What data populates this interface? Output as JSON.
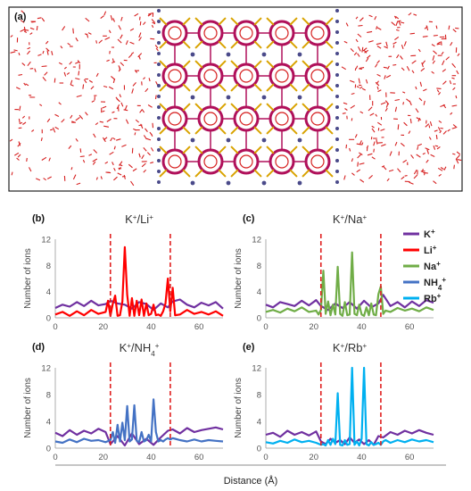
{
  "panel_a": {
    "label": "(a)",
    "atom_colors": {
      "water": "#d62020",
      "framework": "#b0105a",
      "bridge": "#d9a300",
      "cation": "#4a4a8a"
    }
  },
  "colors": {
    "K": "#7030a0",
    "Li": "#ff0000",
    "Na": "#70ad47",
    "NH4": "#4472c4",
    "Rb": "#00b0f0",
    "boundary": "#e02020"
  },
  "legend": [
    {
      "key": "K",
      "label": "K",
      "sup": "+",
      "sub": ""
    },
    {
      "key": "Li",
      "label": "Li",
      "sup": "+",
      "sub": ""
    },
    {
      "key": "Na",
      "label": "Na",
      "sup": "+",
      "sub": ""
    },
    {
      "key": "NH4",
      "label": "NH",
      "sub": "4",
      "sup": "+"
    },
    {
      "key": "Rb",
      "label": "Rb",
      "sup": "+",
      "sub": ""
    }
  ],
  "x_axis_title": "Distance (Å)",
  "chart_data": [
    {
      "id": "b",
      "label": "(b)",
      "type": "line",
      "title": {
        "a": "K",
        "a_sub": "",
        "b": "Li",
        "b_sub": ""
      },
      "ylabel": "Number of ions",
      "xlim": [
        0,
        70
      ],
      "ylim": [
        0,
        12
      ],
      "xticks": [
        0,
        20,
        40,
        60
      ],
      "yticks": [
        0,
        4,
        8,
        12
      ],
      "boundaries": [
        23,
        48
      ],
      "series": [
        {
          "key": "K",
          "x": [
            0,
            3,
            6,
            9,
            12,
            15,
            18,
            21,
            23,
            26,
            29,
            32,
            35,
            38,
            41,
            44,
            47,
            49,
            52,
            55,
            58,
            61,
            64,
            67,
            70
          ],
          "y": [
            1.5,
            2.0,
            1.7,
            2.4,
            1.8,
            2.6,
            1.9,
            2.1,
            2.6,
            2.2,
            2.0,
            1.4,
            2.4,
            2.1,
            1.2,
            2.2,
            1.6,
            2.5,
            2.8,
            2.0,
            1.6,
            2.3,
            1.9,
            2.4,
            1.4
          ]
        },
        {
          "key": "Li",
          "x": [
            0,
            3,
            6,
            9,
            12,
            15,
            18,
            21,
            22,
            23,
            24,
            25,
            26,
            27,
            28,
            29,
            30,
            31,
            32,
            33,
            34,
            35,
            36,
            37,
            38,
            39,
            40,
            41,
            42,
            43,
            44,
            45,
            46,
            47,
            48,
            49,
            50,
            52,
            55,
            58,
            61,
            64,
            67,
            70
          ],
          "y": [
            0.5,
            0.9,
            0.3,
            1.0,
            0.4,
            1.2,
            0.6,
            0.9,
            2.6,
            0.3,
            2.2,
            3.4,
            0.3,
            0.4,
            2.5,
            10.8,
            3.5,
            0.3,
            3.0,
            0.3,
            2.6,
            0.4,
            2.8,
            0.3,
            2.2,
            0.4,
            0.6,
            2.0,
            0.4,
            0.5,
            0.3,
            1.0,
            2.2,
            6.0,
            1.0,
            4.6,
            0.4,
            0.5,
            1.2,
            0.6,
            0.9,
            0.5,
            1.0,
            0.3
          ]
        }
      ]
    },
    {
      "id": "c",
      "label": "(c)",
      "type": "line",
      "title": {
        "a": "K",
        "a_sub": "",
        "b": "Na",
        "b_sub": ""
      },
      "ylabel": "Number of ions",
      "xlim": [
        0,
        70
      ],
      "ylim": [
        0,
        12
      ],
      "xticks": [
        0,
        20,
        40,
        60
      ],
      "yticks": [
        0,
        4,
        8,
        12
      ],
      "boundaries": [
        23,
        48
      ],
      "series": [
        {
          "key": "K",
          "x": [
            0,
            3,
            6,
            9,
            12,
            15,
            18,
            21,
            23,
            26,
            29,
            32,
            35,
            38,
            41,
            44,
            47,
            49,
            52,
            55,
            58,
            61,
            64,
            67,
            70
          ],
          "y": [
            2.0,
            1.6,
            2.4,
            2.1,
            1.8,
            2.6,
            1.9,
            2.7,
            1.8,
            1.2,
            2.2,
            1.5,
            2.4,
            1.4,
            2.6,
            1.6,
            2.2,
            3.5,
            1.8,
            2.4,
            1.6,
            2.5,
            1.8,
            2.7,
            2.3
          ]
        },
        {
          "key": "Na",
          "x": [
            0,
            3,
            6,
            9,
            12,
            15,
            18,
            21,
            22,
            23,
            24,
            25,
            26,
            27,
            28,
            29,
            30,
            31,
            32,
            33,
            34,
            35,
            36,
            37,
            38,
            39,
            40,
            41,
            42,
            43,
            44,
            45,
            46,
            47,
            48,
            49,
            50,
            52,
            55,
            58,
            61,
            64,
            67,
            70
          ],
          "y": [
            0.9,
            1.2,
            0.8,
            1.4,
            1.0,
            1.6,
            0.9,
            1.1,
            0.5,
            1.2,
            7.2,
            0.6,
            2.5,
            0.4,
            2.0,
            0.5,
            7.8,
            0.6,
            0.3,
            2.4,
            0.4,
            0.5,
            10.0,
            0.6,
            0.4,
            2.0,
            0.5,
            0.3,
            1.6,
            0.4,
            2.2,
            0.5,
            0.4,
            3.6,
            4.8,
            0.6,
            1.1,
            0.9,
            1.5,
            1.1,
            1.4,
            1.0,
            1.6,
            1.2
          ]
        }
      ]
    },
    {
      "id": "d",
      "label": "(d)",
      "type": "line",
      "title": {
        "a": "K",
        "a_sub": "",
        "b": "NH",
        "b_sub": "4"
      },
      "ylabel": "Number of ions",
      "xlim": [
        0,
        70
      ],
      "ylim": [
        0,
        12
      ],
      "xticks": [
        0,
        20,
        40,
        60
      ],
      "yticks": [
        0,
        4,
        8,
        12
      ],
      "boundaries": [
        23,
        48
      ],
      "series": [
        {
          "key": "K",
          "x": [
            0,
            3,
            6,
            9,
            12,
            15,
            18,
            21,
            23,
            26,
            29,
            32,
            35,
            38,
            41,
            44,
            47,
            49,
            52,
            55,
            58,
            61,
            64,
            67,
            70
          ],
          "y": [
            2.3,
            1.8,
            2.7,
            2.0,
            2.6,
            2.2,
            2.9,
            2.4,
            0.6,
            1.8,
            0.4,
            2.2,
            0.6,
            1.4,
            0.5,
            1.6,
            2.6,
            2.8,
            2.2,
            3.0,
            2.4,
            2.7,
            2.9,
            3.1,
            2.8
          ]
        },
        {
          "key": "NH4",
          "x": [
            0,
            3,
            6,
            9,
            12,
            15,
            18,
            21,
            23,
            24,
            25,
            26,
            27,
            28,
            29,
            30,
            31,
            32,
            33,
            34,
            35,
            36,
            37,
            38,
            39,
            40,
            41,
            42,
            43,
            44,
            45,
            46,
            47,
            48,
            49,
            50,
            52,
            55,
            58,
            61,
            64,
            67,
            70
          ],
          "y": [
            1.0,
            0.8,
            1.3,
            0.9,
            1.4,
            1.1,
            1.2,
            0.9,
            1.2,
            2.4,
            0.8,
            3.5,
            1.0,
            3.8,
            1.2,
            6.3,
            1.0,
            1.3,
            6.4,
            1.1,
            0.9,
            2.4,
            1.0,
            1.2,
            2.0,
            1.0,
            7.3,
            2.4,
            1.0,
            1.2,
            1.0,
            1.3,
            1.5,
            1.3,
            1.5,
            1.4,
            1.2,
            1.0,
            1.3,
            1.0,
            1.2,
            1.1,
            1.0
          ]
        }
      ]
    },
    {
      "id": "e",
      "label": "(e)",
      "type": "line",
      "title": {
        "a": "K",
        "a_sub": "",
        "b": "Rb",
        "b_sub": ""
      },
      "ylabel": "Number of ions",
      "xlim": [
        0,
        70
      ],
      "ylim": [
        0,
        12
      ],
      "xticks": [
        0,
        20,
        40,
        60
      ],
      "yticks": [
        0,
        4,
        8,
        12
      ],
      "boundaries": [
        23,
        48
      ],
      "series": [
        {
          "key": "K",
          "x": [
            0,
            3,
            6,
            9,
            12,
            15,
            18,
            21,
            23,
            25,
            27,
            29,
            31,
            33,
            35,
            37,
            39,
            41,
            43,
            45,
            47,
            49,
            52,
            55,
            58,
            61,
            64,
            67,
            70
          ],
          "y": [
            2.0,
            2.3,
            1.7,
            2.6,
            2.0,
            2.4,
            1.9,
            2.5,
            1.0,
            0.6,
            1.4,
            0.8,
            1.2,
            0.6,
            1.6,
            0.8,
            1.3,
            0.6,
            1.2,
            0.5,
            1.8,
            1.6,
            2.4,
            2.0,
            2.6,
            2.2,
            2.7,
            2.3,
            2.0
          ]
        },
        {
          "key": "Rb",
          "x": [
            0,
            3,
            6,
            9,
            12,
            15,
            18,
            21,
            23,
            24,
            25,
            26,
            27,
            28,
            29,
            30,
            31,
            32,
            33,
            34,
            35,
            36,
            37,
            38,
            39,
            40,
            41,
            42,
            43,
            44,
            45,
            46,
            47,
            48,
            49,
            50,
            52,
            55,
            58,
            61,
            64,
            67,
            70
          ],
          "y": [
            0.9,
            0.7,
            1.1,
            0.8,
            1.3,
            0.9,
            1.1,
            0.8,
            0.5,
            0.6,
            0.4,
            1.2,
            0.5,
            1.4,
            0.6,
            8.2,
            0.5,
            0.4,
            1.2,
            0.5,
            0.6,
            12.0,
            0.5,
            1.0,
            0.4,
            1.4,
            12.0,
            0.6,
            0.4,
            0.9,
            0.5,
            0.6,
            0.8,
            0.5,
            1.0,
            1.2,
            0.8,
            1.2,
            0.9,
            1.3,
            1.0,
            1.2,
            0.9
          ]
        }
      ]
    }
  ]
}
